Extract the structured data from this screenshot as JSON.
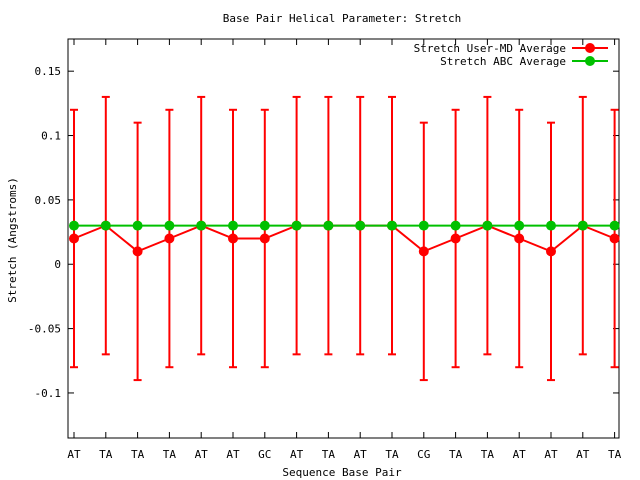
{
  "chart_data": {
    "type": "line",
    "title": "Base Pair Helical Parameter: Stretch",
    "xlabel": "Sequence Base Pair",
    "ylabel": "Stretch (Angstroms)",
    "categories": [
      "AT",
      "TA",
      "TA",
      "TA",
      "AT",
      "AT",
      "GC",
      "AT",
      "TA",
      "AT",
      "TA",
      "CG",
      "TA",
      "TA",
      "AT",
      "AT",
      "AT",
      "TA"
    ],
    "ylim": [
      -0.135,
      0.175
    ],
    "yticks": [
      0.15,
      0.1,
      0.05,
      0,
      -0.05,
      -0.1
    ],
    "ytick_labels": [
      "0.15",
      "0.1",
      "0.05",
      "0",
      "-0.05",
      "-0.1"
    ],
    "grid": false,
    "legend_position": "top-right",
    "series": [
      {
        "name": "Stretch User-MD Average",
        "color": "#ff0000",
        "values": [
          0.02,
          0.03,
          0.01,
          0.02,
          0.03,
          0.02,
          0.02,
          0.03,
          0.03,
          0.03,
          0.03,
          0.01,
          0.02,
          0.03,
          0.02,
          0.01,
          0.03,
          0.02
        ],
        "err_low": [
          -0.08,
          -0.07,
          -0.09,
          -0.08,
          -0.07,
          -0.08,
          -0.08,
          -0.07,
          -0.07,
          -0.07,
          -0.07,
          -0.09,
          -0.08,
          -0.07,
          -0.08,
          -0.09,
          -0.07,
          -0.08
        ],
        "err_high": [
          0.12,
          0.13,
          0.11,
          0.12,
          0.13,
          0.12,
          0.12,
          0.13,
          0.13,
          0.13,
          0.13,
          0.11,
          0.12,
          0.13,
          0.12,
          0.11,
          0.13,
          0.12
        ]
      },
      {
        "name": "Stretch ABC Average",
        "color": "#00c000",
        "values": [
          0.03,
          0.03,
          0.03,
          0.03,
          0.03,
          0.03,
          0.03,
          0.03,
          0.03,
          0.03,
          0.03,
          0.03,
          0.03,
          0.03,
          0.03,
          0.03,
          0.03,
          0.03
        ]
      }
    ]
  }
}
